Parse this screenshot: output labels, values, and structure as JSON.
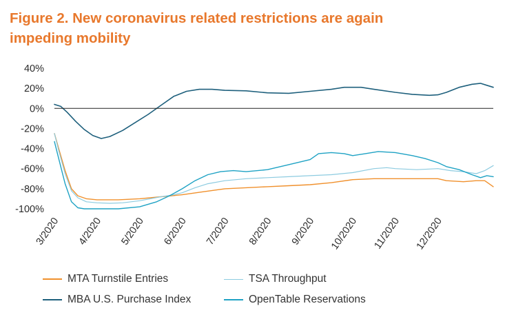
{
  "title": {
    "line1": "Figure 2. New coronavirus related restrictions are again",
    "line2": "impeding mobility"
  },
  "colors": {
    "title": "#e8782c",
    "mta": "#f0902c",
    "tsa": "#8ccbe0",
    "mba": "#1d5f7c",
    "opentable": "#1ea2c4",
    "zero_line": "#222222"
  },
  "chart_data": {
    "type": "line",
    "title": "Figure 2. New coronavirus related restrictions are again impeding mobility",
    "xlabel": "",
    "ylabel": "",
    "ylim": [
      -100,
      40
    ],
    "xlim": [
      0,
      10.3
    ],
    "y_ticks": [
      40,
      20,
      0,
      -20,
      -40,
      -60,
      -80,
      -100
    ],
    "y_tick_labels": [
      "40%",
      "20%",
      "0%",
      "-20%",
      "-40%",
      "-60%",
      "-80%",
      "-100%"
    ],
    "x_ticks": [
      0,
      1,
      2,
      3,
      4,
      5,
      6,
      7,
      8,
      9
    ],
    "x_tick_labels": [
      "3/2020",
      "4/2020",
      "5/2020",
      "6/2020",
      "7/2020",
      "8/2020",
      "9/2020",
      "10/2020",
      "11/2020",
      "12/2020"
    ],
    "x_unit": "months since 3/2020",
    "grid": false,
    "legend_position": "bottom",
    "series": [
      {
        "name": "MTA Turnstile Entries",
        "color_key": "mta",
        "points": [
          [
            0,
            -25
          ],
          [
            0.1,
            -40
          ],
          [
            0.25,
            -62
          ],
          [
            0.4,
            -80
          ],
          [
            0.55,
            -87
          ],
          [
            0.75,
            -90
          ],
          [
            1.0,
            -91
          ],
          [
            1.5,
            -91
          ],
          [
            2.0,
            -90
          ],
          [
            2.5,
            -88
          ],
          [
            3.0,
            -86
          ],
          [
            3.5,
            -83
          ],
          [
            4.0,
            -80
          ],
          [
            4.5,
            -79
          ],
          [
            5.0,
            -78
          ],
          [
            5.5,
            -77
          ],
          [
            6.0,
            -76
          ],
          [
            6.5,
            -74
          ],
          [
            7.0,
            -71
          ],
          [
            7.5,
            -70
          ],
          [
            8.0,
            -70
          ],
          [
            8.5,
            -70
          ],
          [
            9.0,
            -70
          ],
          [
            9.2,
            -72
          ],
          [
            9.6,
            -73
          ],
          [
            9.9,
            -72
          ],
          [
            10.1,
            -72
          ],
          [
            10.2,
            -75
          ],
          [
            10.3,
            -78
          ]
        ]
      },
      {
        "name": "TSA Throughput",
        "color_key": "tsa",
        "points": [
          [
            0,
            -25
          ],
          [
            0.1,
            -42
          ],
          [
            0.25,
            -65
          ],
          [
            0.4,
            -82
          ],
          [
            0.55,
            -89
          ],
          [
            0.75,
            -93
          ],
          [
            1.0,
            -94
          ],
          [
            1.3,
            -94.5
          ],
          [
            1.6,
            -94
          ],
          [
            2.0,
            -92
          ],
          [
            2.5,
            -88
          ],
          [
            2.8,
            -86
          ],
          [
            3.0,
            -84
          ],
          [
            3.3,
            -79
          ],
          [
            3.6,
            -75
          ],
          [
            4.0,
            -72
          ],
          [
            4.5,
            -70
          ],
          [
            5.0,
            -69
          ],
          [
            5.5,
            -68
          ],
          [
            6.0,
            -67
          ],
          [
            6.5,
            -66
          ],
          [
            7.0,
            -64
          ],
          [
            7.5,
            -60
          ],
          [
            7.8,
            -59
          ],
          [
            8.0,
            -60
          ],
          [
            8.5,
            -61
          ],
          [
            9.0,
            -60
          ],
          [
            9.3,
            -62
          ],
          [
            9.6,
            -63
          ],
          [
            9.9,
            -65
          ],
          [
            10.1,
            -62
          ],
          [
            10.3,
            -57
          ]
        ]
      },
      {
        "name": "MBA U.S. Purchase Index",
        "color_key": "mba",
        "points": [
          [
            0,
            4
          ],
          [
            0.15,
            2
          ],
          [
            0.3,
            -4
          ],
          [
            0.5,
            -13
          ],
          [
            0.7,
            -21
          ],
          [
            0.9,
            -27
          ],
          [
            1.1,
            -30
          ],
          [
            1.3,
            -28
          ],
          [
            1.6,
            -22
          ],
          [
            1.9,
            -14
          ],
          [
            2.2,
            -6
          ],
          [
            2.5,
            3
          ],
          [
            2.8,
            12
          ],
          [
            3.1,
            17
          ],
          [
            3.4,
            19
          ],
          [
            3.7,
            19
          ],
          [
            4.0,
            18
          ],
          [
            4.5,
            17.5
          ],
          [
            5.0,
            15.5
          ],
          [
            5.5,
            15
          ],
          [
            6.0,
            17
          ],
          [
            6.5,
            19
          ],
          [
            6.8,
            21
          ],
          [
            7.2,
            21
          ],
          [
            7.5,
            19
          ],
          [
            8.0,
            16
          ],
          [
            8.4,
            14
          ],
          [
            8.8,
            13
          ],
          [
            9.0,
            13.5
          ],
          [
            9.2,
            16
          ],
          [
            9.5,
            21
          ],
          [
            9.8,
            24
          ],
          [
            10.0,
            25
          ],
          [
            10.15,
            23
          ],
          [
            10.3,
            21
          ]
        ]
      },
      {
        "name": "OpenTable Reservations",
        "color_key": "opentable",
        "points": [
          [
            0,
            -33
          ],
          [
            0.1,
            -50
          ],
          [
            0.25,
            -75
          ],
          [
            0.4,
            -93
          ],
          [
            0.55,
            -99
          ],
          [
            0.7,
            -100
          ],
          [
            1.0,
            -100
          ],
          [
            1.5,
            -100
          ],
          [
            2.0,
            -98
          ],
          [
            2.4,
            -93
          ],
          [
            2.7,
            -87
          ],
          [
            3.0,
            -80
          ],
          [
            3.3,
            -72
          ],
          [
            3.6,
            -66
          ],
          [
            3.9,
            -63
          ],
          [
            4.2,
            -62
          ],
          [
            4.5,
            -63
          ],
          [
            5.0,
            -61
          ],
          [
            5.5,
            -56
          ],
          [
            6.0,
            -51
          ],
          [
            6.2,
            -45
          ],
          [
            6.5,
            -44
          ],
          [
            6.8,
            -45
          ],
          [
            7.0,
            -47
          ],
          [
            7.3,
            -45
          ],
          [
            7.6,
            -43
          ],
          [
            8.0,
            -44
          ],
          [
            8.4,
            -47
          ],
          [
            8.7,
            -50
          ],
          [
            9.0,
            -54
          ],
          [
            9.2,
            -58
          ],
          [
            9.5,
            -61
          ],
          [
            9.8,
            -66
          ],
          [
            10.0,
            -69
          ],
          [
            10.15,
            -67
          ],
          [
            10.3,
            -68
          ]
        ]
      }
    ]
  },
  "legend": {
    "items": [
      {
        "label": "MTA Turnstile Entries",
        "color_key": "mta",
        "style": "solid"
      },
      {
        "label": "TSA Throughput",
        "color_key": "tsa",
        "style": "thin"
      },
      {
        "label": "MBA U.S. Purchase Index",
        "color_key": "mba",
        "style": "solid"
      },
      {
        "label": "OpenTable Reservations",
        "color_key": "opentable",
        "style": "solid"
      }
    ]
  }
}
